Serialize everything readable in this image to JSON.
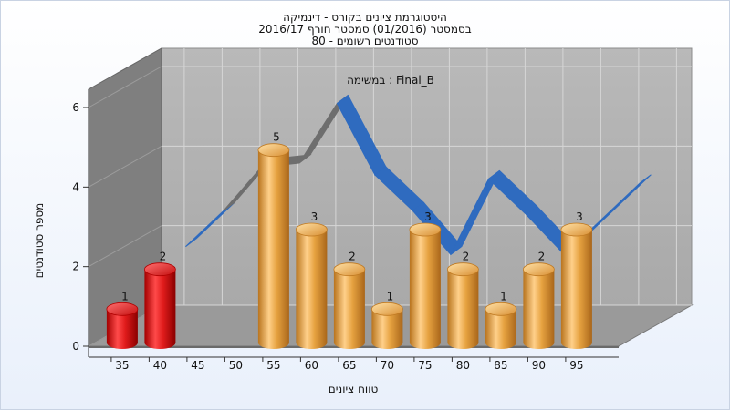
{
  "chart_data": {
    "type": "bar",
    "title": [
      "היסטוגרמת ציונים בקורס - דינמיקה",
      "בסמסטר (01/2016) סמסטר חורף 2016/17",
      "סטודנטים רשומים - 80"
    ],
    "subtitle": "במשימה : Final_B",
    "xlabel": "טווח ציונים",
    "ylabel": "מספר סטודנטים",
    "x_ticks": [
      35,
      40,
      45,
      50,
      55,
      60,
      65,
      70,
      75,
      80,
      85,
      90,
      95
    ],
    "y_ticks": [
      0,
      2,
      4,
      6
    ],
    "ylim": [
      0,
      6
    ],
    "grid": true,
    "bars": [
      {
        "x": 35,
        "value": 1,
        "color": "#e52020"
      },
      {
        "x": 40,
        "value": 2,
        "color": "#e52020"
      },
      {
        "x": 55,
        "value": 5,
        "color": "#e8a84a"
      },
      {
        "x": 60,
        "value": 3,
        "color": "#e8a84a"
      },
      {
        "x": 65,
        "value": 2,
        "color": "#e8a84a"
      },
      {
        "x": 70,
        "value": 1,
        "color": "#e8a84a"
      },
      {
        "x": 75,
        "value": 3,
        "color": "#e8a84a"
      },
      {
        "x": 80,
        "value": 2,
        "color": "#e8a84a"
      },
      {
        "x": 85,
        "value": 1,
        "color": "#e8a84a"
      },
      {
        "x": 90,
        "value": 2,
        "color": "#e8a84a"
      },
      {
        "x": 95,
        "value": 3,
        "color": "#e8a84a"
      }
    ],
    "curve": {
      "x": [
        40,
        45,
        50,
        55,
        60,
        65,
        70,
        75,
        80,
        85,
        90,
        95,
        100
      ],
      "values": [
        2.0,
        2.9,
        4.0,
        4.1,
        5.6,
        3.8,
        2.9,
        1.8,
        3.7,
        2.8,
        1.8,
        2.7,
        3.6
      ],
      "colors": {
        "front": "#2f6bbf",
        "back": "#6e6e6e"
      }
    },
    "colors": {
      "wall": "#b2b2b2",
      "side_wall": "#7f7f7f",
      "floor": "#9a9a9a"
    }
  }
}
